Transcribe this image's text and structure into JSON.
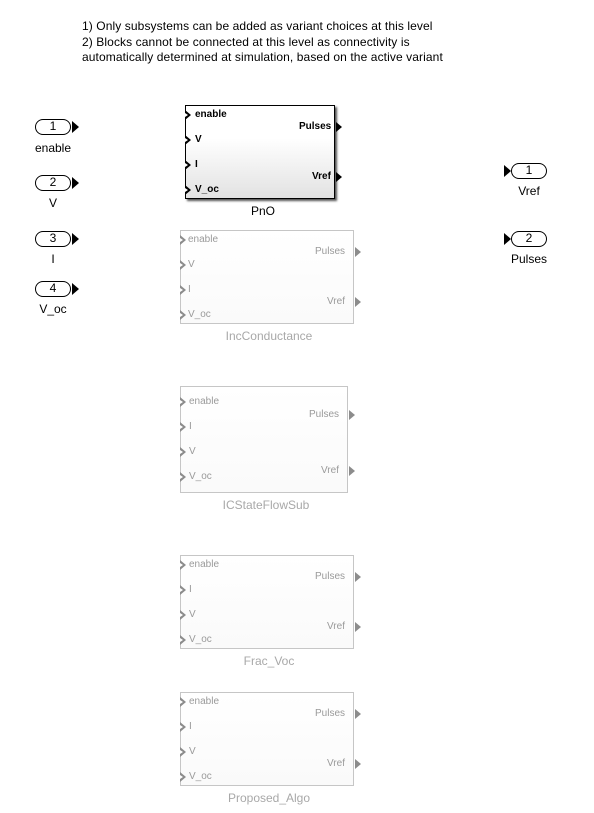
{
  "note": {
    "line1": "1) Only subsystems can be added as variant choices at this level",
    "line2": "2) Blocks cannot be connected at this level as connectivity is",
    "line3": "automatically determined at simulation, based on the active variant"
  },
  "inports": [
    {
      "number": "1",
      "label": "enable"
    },
    {
      "number": "2",
      "label": "V"
    },
    {
      "number": "3",
      "label": "I"
    },
    {
      "number": "4",
      "label": "V_oc"
    }
  ],
  "outports": [
    {
      "number": "1",
      "label": "Vref"
    },
    {
      "number": "2",
      "label": "Pulses"
    }
  ],
  "blocks": [
    {
      "name": "PnO",
      "active": true,
      "inputs": [
        "enable",
        "V",
        "I",
        "V_oc"
      ],
      "outputs": [
        "Pulses",
        "Vref"
      ]
    },
    {
      "name": "IncConductance",
      "active": false,
      "inputs": [
        "enable",
        "V",
        "I",
        "V_oc"
      ],
      "outputs": [
        "Pulses",
        "Vref"
      ]
    },
    {
      "name": "ICStateFlowSub",
      "active": false,
      "inputs": [
        "enable",
        "I",
        "V",
        "V_oc"
      ],
      "outputs": [
        "Pulses",
        "Vref"
      ]
    },
    {
      "name": "Frac_Voc",
      "active": false,
      "inputs": [
        "enable",
        "I",
        "V",
        "V_oc"
      ],
      "outputs": [
        "Pulses",
        "Vref"
      ]
    },
    {
      "name": "Proposed_Algo",
      "active": false,
      "inputs": [
        "enable",
        "I",
        "V",
        "V_oc"
      ],
      "outputs": [
        "Pulses",
        "Vref"
      ]
    }
  ]
}
